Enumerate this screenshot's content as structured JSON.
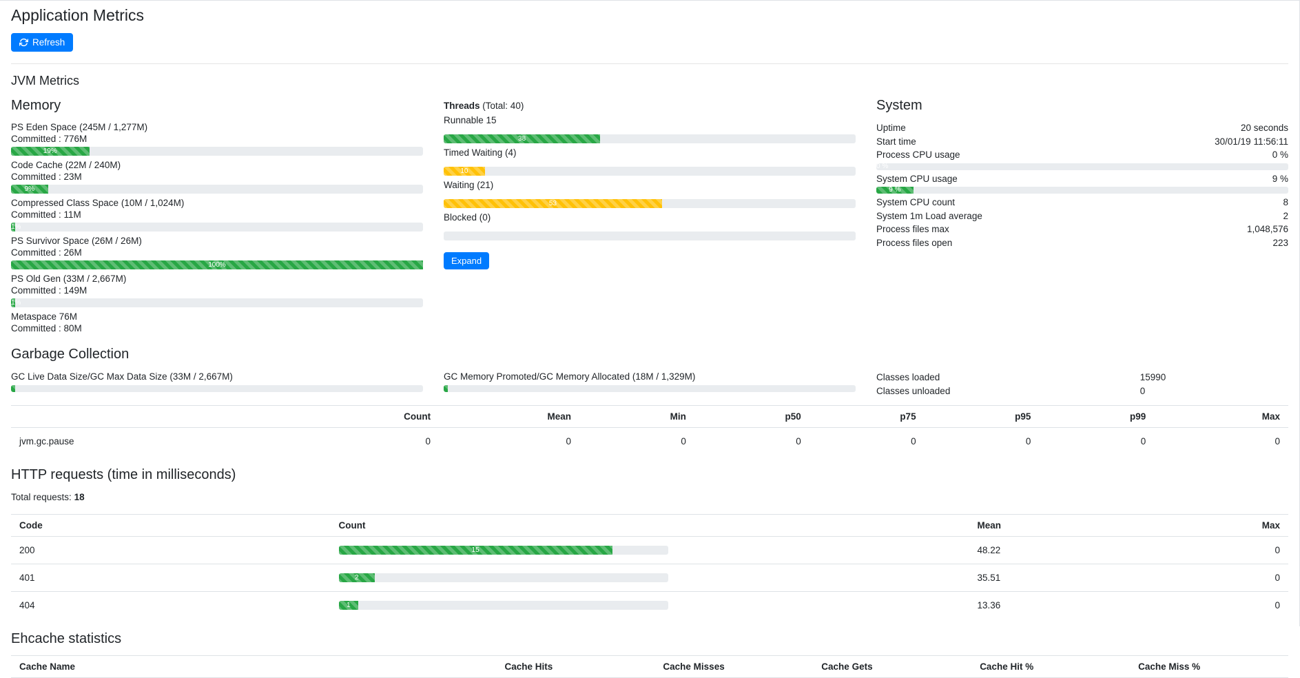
{
  "page": {
    "title": "Application Metrics",
    "refresh_label": "Refresh"
  },
  "colors": {
    "primary": "#007bff",
    "success": "#28a745",
    "warning": "#ffc107",
    "track": "#e9ecef"
  },
  "jvm": {
    "heading": "JVM Metrics",
    "memory": {
      "heading": "Memory",
      "items": [
        {
          "label": "PS Eden Space (245M / 1,277M)",
          "committed": "Committed : 776M",
          "percent": 19,
          "text": "19%"
        },
        {
          "label": "Code Cache (22M / 240M)",
          "committed": "Committed : 23M",
          "percent": 9,
          "text": "9%"
        },
        {
          "label": "Compressed Class Space (10M / 1,024M)",
          "committed": "Committed : 11M",
          "percent": 1,
          "text": "1%"
        },
        {
          "label": "PS Survivor Space (26M / 26M)",
          "committed": "Committed : 26M",
          "percent": 100,
          "text": "100%"
        },
        {
          "label": "PS Old Gen (33M / 2,667M)",
          "committed": "Committed : 149M",
          "percent": 1,
          "text": "1%"
        },
        {
          "label": "Metaspace 76M",
          "committed": "Committed : 80M"
        }
      ]
    },
    "threads": {
      "heading": "Threads",
      "total": "(Total: 40)",
      "expand_label": "Expand",
      "items": [
        {
          "label": "Runnable 15",
          "percent": 38,
          "text": "38",
          "color": "success"
        },
        {
          "label": "Timed Waiting (4)",
          "percent": 10,
          "text": "10",
          "color": "warning"
        },
        {
          "label": "Waiting (21)",
          "percent": 53,
          "text": "53",
          "color": "warning"
        },
        {
          "label": "Blocked (0)",
          "percent": 0,
          "text": "",
          "color": "success"
        }
      ]
    },
    "system": {
      "heading": "System",
      "rows": [
        {
          "label": "Uptime",
          "value": "20 seconds"
        },
        {
          "label": "Start time",
          "value": "30/01/19 11:56:11"
        },
        {
          "label": "Process CPU usage",
          "value": "0 %",
          "bar_percent": 0,
          "bar_text": "0 %"
        },
        {
          "label": "System CPU usage",
          "value": "9 %",
          "bar_percent": 9,
          "bar_text": "9 %"
        },
        {
          "label": "System CPU count",
          "value": "8"
        },
        {
          "label": "System 1m Load average",
          "value": "2"
        },
        {
          "label": "Process files max",
          "value": "1,048,576"
        },
        {
          "label": "Process files open",
          "value": "223"
        }
      ]
    }
  },
  "gc": {
    "heading": "Garbage Collection",
    "bars": [
      {
        "label": "GC Live Data Size/GC Max Data Size (33M / 2,667M)",
        "percent": 1,
        "text": ""
      },
      {
        "label": "GC Memory Promoted/GC Memory Allocated (18M / 1,329M)",
        "percent": 1,
        "text": ""
      }
    ],
    "classes": [
      {
        "label": "Classes loaded",
        "value": "15990"
      },
      {
        "label": "Classes unloaded",
        "value": "0"
      }
    ],
    "table": {
      "name_header": "",
      "headers": [
        "Count",
        "Mean",
        "Min",
        "p50",
        "p75",
        "p95",
        "p99",
        "Max"
      ],
      "rows": [
        {
          "name": "jvm.gc.pause",
          "values": [
            "0",
            "0",
            "0",
            "0",
            "0",
            "0",
            "0",
            "0"
          ]
        }
      ]
    }
  },
  "http": {
    "heading": "HTTP requests (time in milliseconds)",
    "total_label": "Total requests:",
    "total_value": "18",
    "headers": {
      "code": "Code",
      "count": "Count",
      "mean": "Mean",
      "max": "Max"
    },
    "rows": [
      {
        "code": "200",
        "count_percent": 83,
        "count_text": "15",
        "mean": "48.22",
        "max": "0"
      },
      {
        "code": "401",
        "count_percent": 11,
        "count_text": "2",
        "mean": "35.51",
        "max": "0"
      },
      {
        "code": "404",
        "count_percent": 6,
        "count_text": "1",
        "mean": "13.36",
        "max": "0"
      }
    ]
  },
  "cache": {
    "heading": "Ehcache statistics",
    "headers": [
      "Cache Name",
      "Cache Hits",
      "Cache Misses",
      "Cache Gets",
      "Cache Hit %",
      "Cache Miss %"
    ]
  }
}
